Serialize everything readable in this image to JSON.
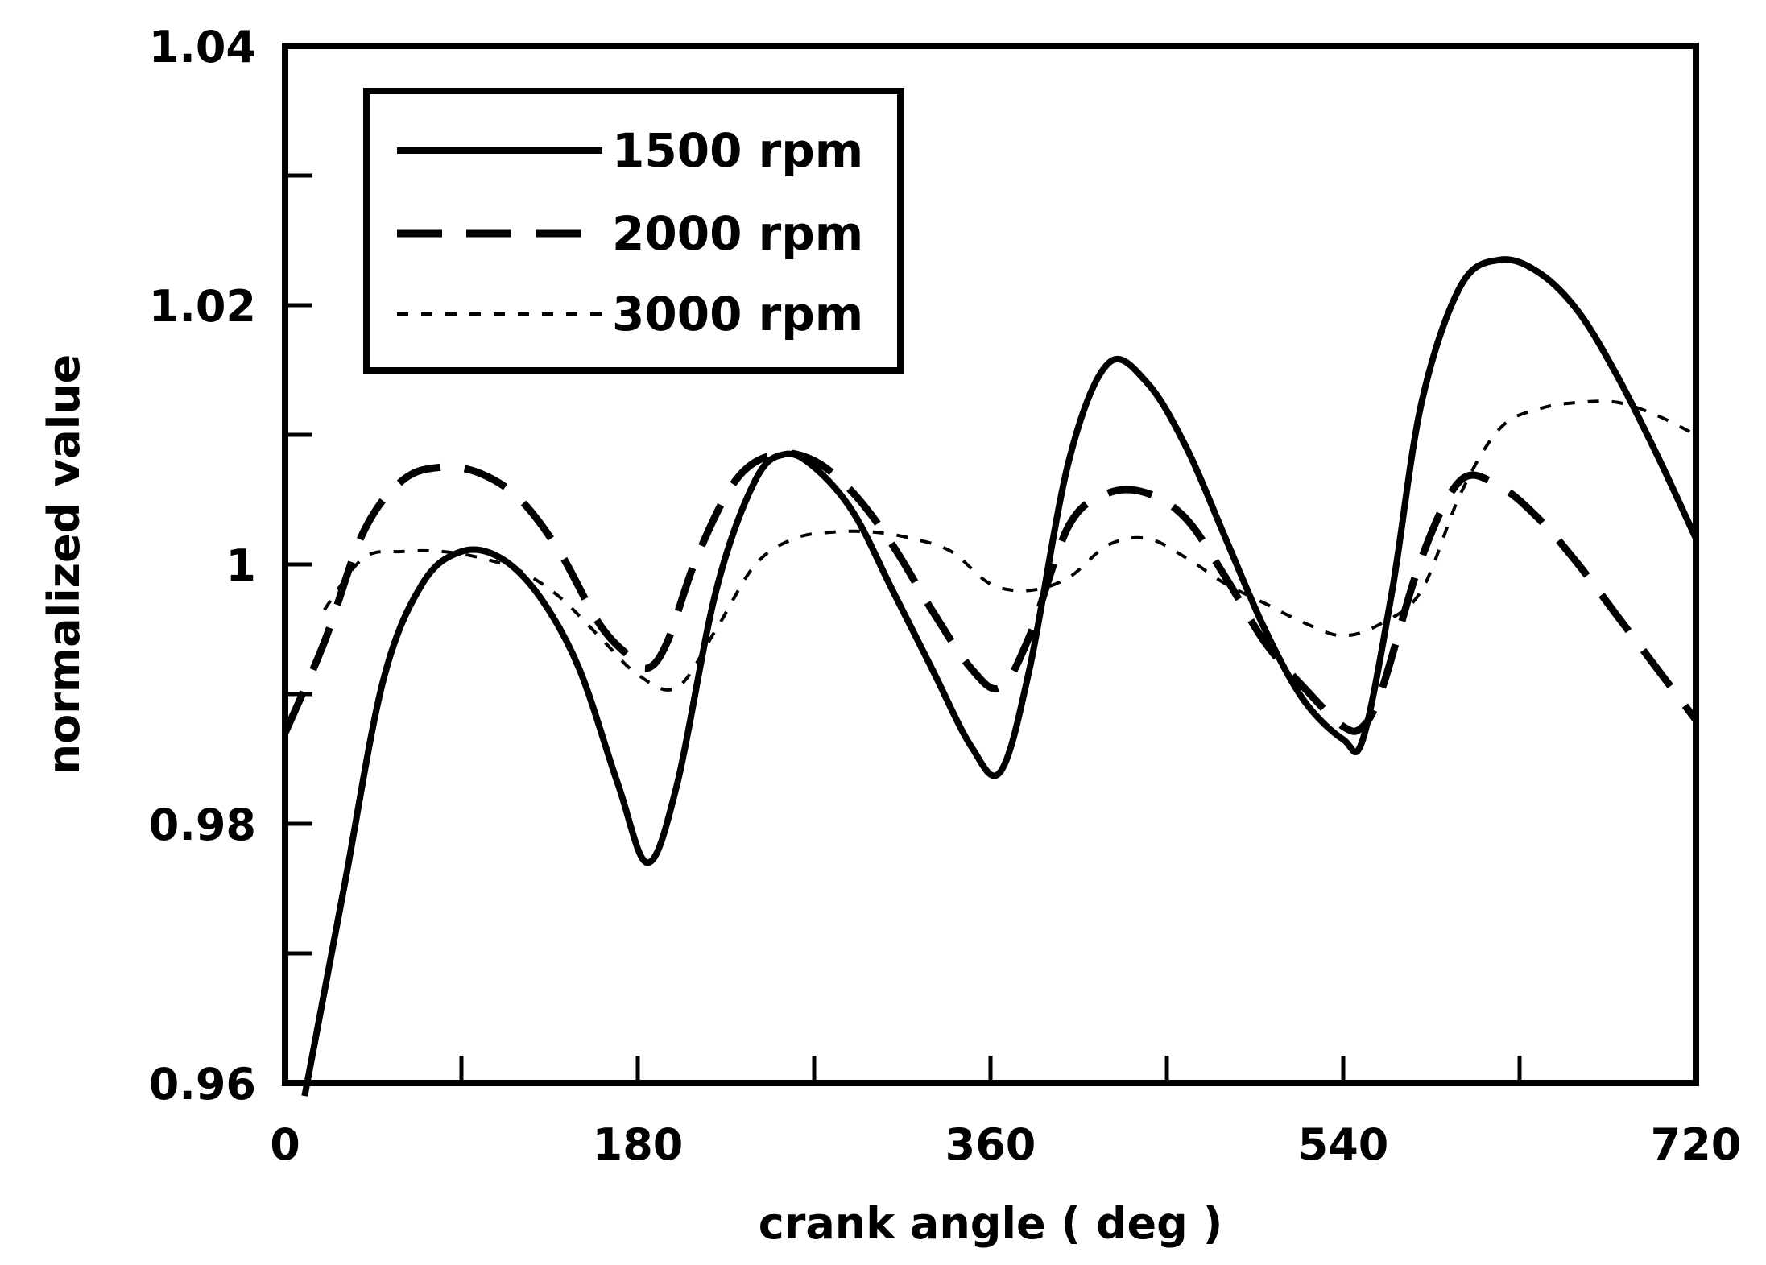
{
  "chart_data": {
    "type": "line",
    "title": "",
    "xlabel": "crank angle ( deg )",
    "ylabel": "normalized value",
    "xlim": [
      0,
      720
    ],
    "ylim": [
      0.96,
      1.04
    ],
    "x_ticks": [
      0,
      180,
      360,
      540,
      720
    ],
    "x_tick_labels": [
      "0",
      "180",
      "360",
      "540",
      "720"
    ],
    "y_ticks": [
      0.96,
      0.98,
      1.0,
      1.02,
      1.04
    ],
    "y_tick_labels": [
      "0.96",
      "0.98",
      "1",
      "1.02",
      "1.04"
    ],
    "grid": false,
    "legend_position": "top-left",
    "series": [
      {
        "name": "1500 rpm",
        "style": "solid",
        "x": [
          10,
          30,
          50,
          70,
          90,
          110,
          130,
          150,
          170,
          185,
          200,
          220,
          240,
          255,
          270,
          290,
          310,
          330,
          350,
          365,
          380,
          400,
          420,
          440,
          460,
          480,
          500,
          520,
          540,
          550,
          565,
          580,
          600,
          620,
          640,
          660,
          680,
          700,
          720
        ],
        "y": [
          0.959,
          0.975,
          0.991,
          0.9985,
          1.001,
          1.0005,
          0.9975,
          0.992,
          0.983,
          0.977,
          0.983,
          0.998,
          1.0065,
          1.0085,
          1.0075,
          1.004,
          0.998,
          0.992,
          0.986,
          0.984,
          0.992,
          1.008,
          1.0155,
          1.014,
          1.009,
          1.002,
          0.995,
          0.9895,
          0.9865,
          0.9865,
          0.998,
          1.0125,
          1.0215,
          1.0235,
          1.0225,
          1.0195,
          1.0145,
          1.0085,
          1.002
        ]
      },
      {
        "name": "2000 rpm",
        "style": "dashed",
        "x": [
          0,
          20,
          40,
          60,
          80,
          100,
          120,
          140,
          160,
          175,
          185,
          195,
          210,
          230,
          250,
          270,
          290,
          310,
          330,
          350,
          365,
          380,
          400,
          420,
          440,
          460,
          480,
          500,
          520,
          540,
          550,
          560,
          580,
          600,
          620,
          640,
          660,
          680,
          700,
          720
        ],
        "y": [
          0.987,
          0.994,
          1.0025,
          1.0065,
          1.0075,
          1.007,
          1.005,
          1.001,
          0.9955,
          0.993,
          0.992,
          0.994,
          1.0005,
          1.0065,
          1.0085,
          1.008,
          1.0055,
          1.0015,
          0.9965,
          0.992,
          0.9905,
          0.9945,
          1.003,
          1.0055,
          1.0055,
          1.0035,
          0.999,
          0.994,
          0.9905,
          0.9875,
          0.9875,
          0.9905,
          1.0005,
          1.0065,
          1.006,
          1.0035,
          1.0,
          0.996,
          0.992,
          0.988
        ]
      },
      {
        "name": "3000 rpm",
        "style": "dotted",
        "x": [
          20,
          40,
          60,
          80,
          100,
          120,
          140,
          160,
          180,
          200,
          220,
          240,
          260,
          280,
          300,
          320,
          340,
          360,
          380,
          400,
          420,
          440,
          460,
          480,
          500,
          520,
          540,
          560,
          580,
          600,
          620,
          640,
          660,
          680,
          700,
          720
        ],
        "y": [
          0.9965,
          1.0005,
          1.001,
          1.001,
          1.0005,
          0.9995,
          0.9975,
          0.9945,
          0.9915,
          0.9905,
          0.995,
          1.0,
          1.002,
          1.0025,
          1.0025,
          1.002,
          1.001,
          0.9985,
          0.998,
          0.999,
          1.0015,
          1.002,
          1.0005,
          0.9985,
          0.997,
          0.9955,
          0.9945,
          0.9955,
          0.998,
          1.0055,
          1.0105,
          1.012,
          1.0125,
          1.0125,
          1.0115,
          1.01
        ]
      }
    ]
  }
}
